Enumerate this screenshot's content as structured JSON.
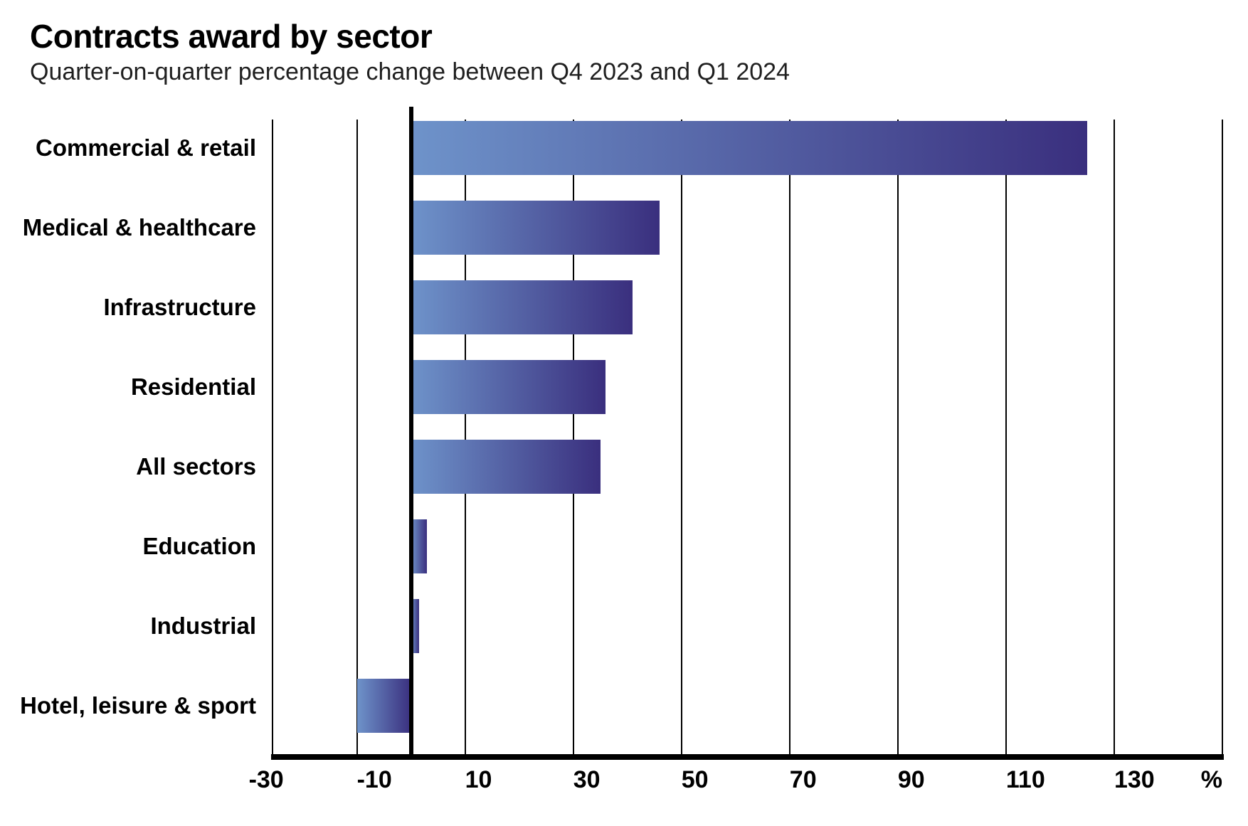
{
  "header": {
    "title": "Contracts award by sector",
    "subtitle": "Quarter-on-quarter percentage change between Q4 2023 and Q1 2024"
  },
  "chart_data": {
    "type": "bar",
    "orientation": "horizontal",
    "title": "Contracts award by sector",
    "subtitle": "Quarter-on-quarter percentage change between Q4 2023 and Q1 2024",
    "categories": [
      "Commercial & retail",
      "Medical & healthcare",
      "Infrastructure",
      "Residential",
      "All sectors",
      "Education",
      "Industrial",
      "Hotel, leisure & sport"
    ],
    "values": [
      125,
      46,
      41,
      36,
      35,
      3,
      1.5,
      -10
    ],
    "unit_label": "%",
    "xlabel": "",
    "ylabel": "",
    "xlim": [
      -25.6,
      150
    ],
    "xticks": [
      -30,
      -10,
      10,
      30,
      50,
      70,
      90,
      110,
      130
    ],
    "grid": "vertical gridlines at xticks, thick vertical line at zero",
    "legend": "none",
    "colors": {
      "bar_gradient_start": "#6E93CA",
      "bar_gradient_end": "#3A2F7E",
      "axis": "#000000",
      "title_text": "#000000",
      "subtitle_text": "#1F1F1F"
    }
  }
}
